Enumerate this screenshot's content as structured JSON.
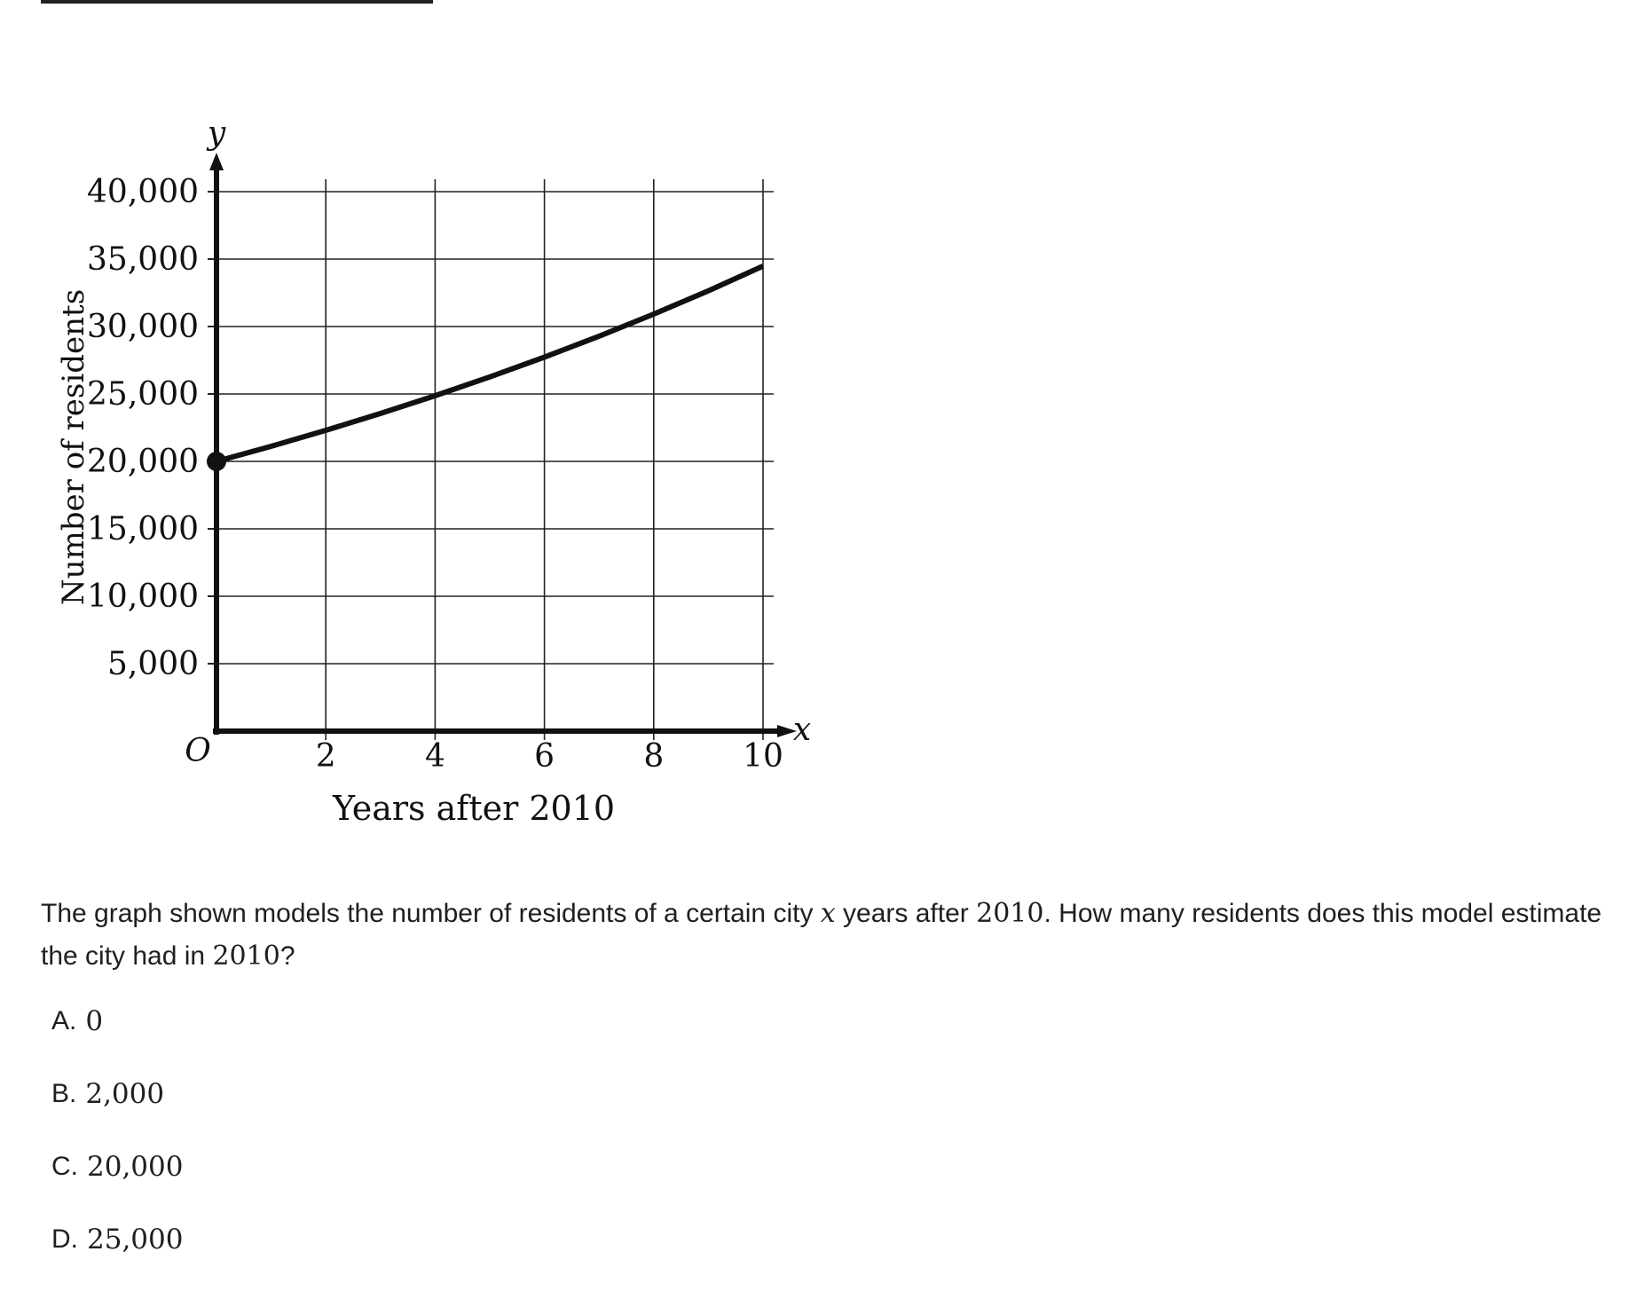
{
  "chart_data": {
    "type": "line",
    "title": "",
    "xlabel": "Years after 2010",
    "ylabel": "Number of residents",
    "x_axis_symbol": "x",
    "y_axis_symbol": "y",
    "origin_label": "O",
    "xlim": [
      0,
      10
    ],
    "ylim": [
      0,
      40000
    ],
    "x_ticks": [
      2,
      4,
      6,
      8,
      10
    ],
    "x_tick_labels": [
      "2",
      "4",
      "6",
      "8",
      "10"
    ],
    "y_ticks": [
      5000,
      10000,
      15000,
      20000,
      25000,
      30000,
      35000,
      40000
    ],
    "y_tick_labels": [
      "5,000",
      "10,000",
      "15,000",
      "20,000",
      "25,000",
      "30,000",
      "35,000",
      "40,000"
    ],
    "grid": true,
    "series": [
      {
        "x": [
          0,
          1,
          2,
          3,
          4,
          5,
          6,
          7,
          8,
          9,
          10
        ],
        "values": [
          20000,
          21120,
          22300,
          23550,
          24870,
          26260,
          27730,
          29280,
          30920,
          32650,
          34480
        ]
      }
    ],
    "marked_point": {
      "x": 0,
      "y": 20000
    },
    "colors": {
      "line": "#111111",
      "grid": "#222222"
    }
  },
  "question": {
    "text_before": "The graph shown models the number of residents of a certain city ",
    "variable": "x",
    "text_middle": " years after ",
    "year": "2010",
    "text_after": ". How many residents does this model estimate the city had in ",
    "year2": "2010",
    "text_end": "?"
  },
  "choices": [
    {
      "letter": "A.",
      "value": "0"
    },
    {
      "letter": "B.",
      "value": "2,000"
    },
    {
      "letter": "C.",
      "value": "20,000"
    },
    {
      "letter": "D.",
      "value": "25,000"
    }
  ]
}
